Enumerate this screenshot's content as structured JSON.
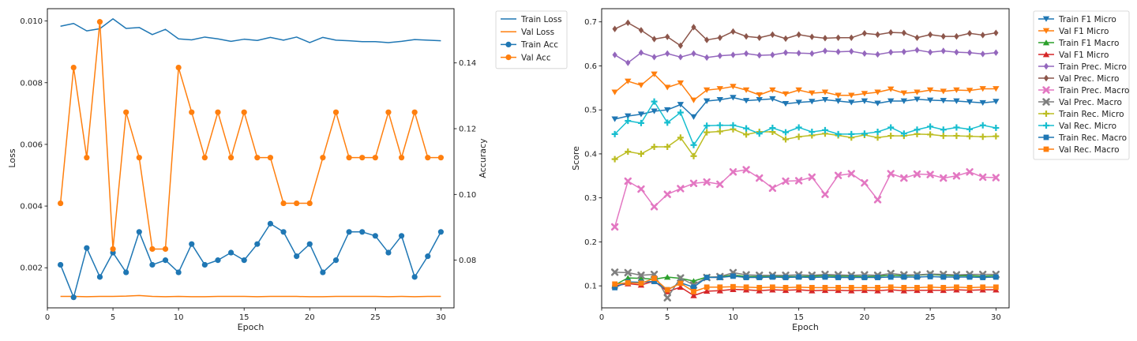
{
  "chart_data": [
    {
      "type": "line",
      "xlabel": "Epoch",
      "ylabel": "Loss",
      "y2label": "Accuracy",
      "xlim": [
        0,
        31
      ],
      "ylim": [
        0.0007,
        0.0104
      ],
      "y2lim": [
        0.0655,
        0.1565
      ],
      "x_ticks": [
        0,
        5,
        10,
        15,
        20,
        25,
        30
      ],
      "y_ticks": [
        0.002,
        0.004,
        0.006,
        0.008,
        0.01
      ],
      "y2_ticks": [
        0.08,
        0.1,
        0.12,
        0.14
      ],
      "grid": false,
      "legend": "upper-right-outside",
      "x": [
        1,
        2,
        3,
        4,
        5,
        6,
        7,
        8,
        9,
        10,
        11,
        12,
        13,
        14,
        15,
        16,
        17,
        18,
        19,
        20,
        21,
        22,
        23,
        24,
        25,
        26,
        27,
        28,
        29,
        30
      ],
      "series": [
        {
          "name": "Train Loss",
          "axis": "left",
          "color": "#1f77b4",
          "marker": "none",
          "values": [
            0.00983,
            0.00992,
            0.00968,
            0.00975,
            0.01007,
            0.00976,
            0.00979,
            0.00956,
            0.00973,
            0.00942,
            0.00939,
            0.00948,
            0.00942,
            0.00934,
            0.00941,
            0.00937,
            0.00947,
            0.00938,
            0.00948,
            0.0093,
            0.00947,
            0.00938,
            0.00936,
            0.00933,
            0.00933,
            0.0093,
            0.00934,
            0.0094,
            0.00938,
            0.00936
          ]
        },
        {
          "name": "Val Loss",
          "axis": "left",
          "color": "#ff7f0e",
          "marker": "none",
          "values": [
            0.00107,
            0.00107,
            0.00106,
            0.00107,
            0.00107,
            0.00108,
            0.0011,
            0.00107,
            0.00106,
            0.00107,
            0.00106,
            0.00106,
            0.00107,
            0.00107,
            0.00107,
            0.00106,
            0.00107,
            0.00107,
            0.00107,
            0.00106,
            0.00106,
            0.00107,
            0.00107,
            0.00107,
            0.00107,
            0.00106,
            0.00107,
            0.00106,
            0.00107,
            0.00107
          ]
        },
        {
          "name": "Train Acc",
          "axis": "right",
          "color": "#1f77b4",
          "marker": "circle",
          "values": [
            0.0786,
            0.0687,
            0.0837,
            0.0749,
            0.0823,
            0.0763,
            0.0886,
            0.0786,
            0.08,
            0.0763,
            0.0849,
            0.0786,
            0.08,
            0.0823,
            0.08,
            0.0849,
            0.0911,
            0.0886,
            0.0812,
            0.0849,
            0.0763,
            0.08,
            0.0886,
            0.0886,
            0.0874,
            0.0823,
            0.0874,
            0.0749,
            0.0812,
            0.0886
          ]
        },
        {
          "name": "Val Acc",
          "axis": "right",
          "color": "#ff7f0e",
          "marker": "circle",
          "values": [
            0.0973,
            0.1386,
            0.1112,
            0.1525,
            0.0834,
            0.125,
            0.1112,
            0.0834,
            0.0834,
            0.1386,
            0.125,
            0.1112,
            0.125,
            0.1112,
            0.125,
            0.1112,
            0.1112,
            0.0973,
            0.0973,
            0.0973,
            0.1112,
            0.125,
            0.1112,
            0.1112,
            0.1112,
            0.125,
            0.1112,
            0.125,
            0.1112,
            0.1112
          ]
        }
      ]
    },
    {
      "type": "line",
      "xlabel": "Epoch",
      "ylabel": "Score",
      "xlim": [
        0,
        31
      ],
      "ylim": [
        0.05,
        0.73
      ],
      "x_ticks": [
        0,
        5,
        10,
        15,
        20,
        25,
        30
      ],
      "y_ticks": [
        0.1,
        0.2,
        0.3,
        0.4,
        0.5,
        0.6,
        0.7
      ],
      "grid": false,
      "legend": "upper-right-outside",
      "x": [
        1,
        2,
        3,
        4,
        5,
        6,
        7,
        8,
        9,
        10,
        11,
        12,
        13,
        14,
        15,
        16,
        17,
        18,
        19,
        20,
        21,
        22,
        23,
        24,
        25,
        26,
        27,
        28,
        29,
        30
      ],
      "series": [
        {
          "name": "Train F1 Micro",
          "color": "#1f77b4",
          "marker": "tri-down",
          "values": [
            0.479,
            0.486,
            0.49,
            0.497,
            0.5,
            0.512,
            0.484,
            0.52,
            0.523,
            0.528,
            0.521,
            0.523,
            0.525,
            0.514,
            0.517,
            0.519,
            0.523,
            0.52,
            0.517,
            0.52,
            0.515,
            0.52,
            0.52,
            0.524,
            0.522,
            0.521,
            0.52,
            0.518,
            0.516,
            0.519
          ]
        },
        {
          "name": "Val F1 Micro",
          "color": "#ff7f0e",
          "marker": "tri-down",
          "values": [
            0.54,
            0.565,
            0.556,
            0.581,
            0.551,
            0.561,
            0.522,
            0.545,
            0.548,
            0.553,
            0.545,
            0.534,
            0.545,
            0.536,
            0.545,
            0.538,
            0.54,
            0.533,
            0.533,
            0.537,
            0.54,
            0.547,
            0.538,
            0.54,
            0.545,
            0.542,
            0.545,
            0.544,
            0.548,
            0.548
          ]
        },
        {
          "name": "Train F1 Macro",
          "color": "#2ca02c",
          "marker": "tri-up",
          "values": [
            0.102,
            0.118,
            0.117,
            0.115,
            0.12,
            0.117,
            0.111,
            0.12,
            0.12,
            0.125,
            0.121,
            0.121,
            0.121,
            0.121,
            0.121,
            0.122,
            0.123,
            0.122,
            0.122,
            0.121,
            0.122,
            0.124,
            0.123,
            0.124,
            0.126,
            0.124,
            0.123,
            0.123,
            0.122,
            0.123
          ]
        },
        {
          "name": "Val F1 Micro",
          "color": "#d62728",
          "marker": "tri-up",
          "values": [
            0.1,
            0.105,
            0.102,
            0.111,
            0.087,
            0.097,
            0.078,
            0.088,
            0.089,
            0.092,
            0.091,
            0.089,
            0.091,
            0.09,
            0.091,
            0.089,
            0.09,
            0.09,
            0.089,
            0.09,
            0.089,
            0.091,
            0.089,
            0.09,
            0.09,
            0.09,
            0.091,
            0.09,
            0.091,
            0.091
          ]
        },
        {
          "name": "Train Prec. Micro",
          "color": "#9467bd",
          "marker": "diamond",
          "values": [
            0.625,
            0.607,
            0.63,
            0.62,
            0.628,
            0.62,
            0.628,
            0.619,
            0.623,
            0.625,
            0.628,
            0.624,
            0.625,
            0.63,
            0.629,
            0.628,
            0.634,
            0.632,
            0.633,
            0.628,
            0.626,
            0.631,
            0.632,
            0.636,
            0.631,
            0.634,
            0.631,
            0.63,
            0.627,
            0.63
          ]
        },
        {
          "name": "Val Prec. Micro",
          "color": "#8c564b",
          "marker": "diamond",
          "values": [
            0.684,
            0.698,
            0.681,
            0.661,
            0.666,
            0.646,
            0.688,
            0.659,
            0.664,
            0.678,
            0.667,
            0.664,
            0.671,
            0.662,
            0.671,
            0.666,
            0.663,
            0.664,
            0.664,
            0.674,
            0.671,
            0.676,
            0.675,
            0.664,
            0.671,
            0.667,
            0.667,
            0.674,
            0.67,
            0.675
          ]
        },
        {
          "name": "Train Prec. Macro",
          "color": "#e377c2",
          "marker": "x",
          "values": [
            0.234,
            0.338,
            0.32,
            0.28,
            0.308,
            0.321,
            0.333,
            0.336,
            0.331,
            0.359,
            0.364,
            0.345,
            0.322,
            0.338,
            0.339,
            0.347,
            0.308,
            0.351,
            0.355,
            0.334,
            0.296,
            0.355,
            0.345,
            0.354,
            0.353,
            0.345,
            0.35,
            0.359,
            0.347,
            0.346
          ]
        },
        {
          "name": "Val Prec. Macro",
          "color": "#7f7f7f",
          "marker": "x",
          "values": [
            0.131,
            0.13,
            0.124,
            0.126,
            0.073,
            0.118,
            0.102,
            0.119,
            0.121,
            0.13,
            0.125,
            0.124,
            0.124,
            0.124,
            0.125,
            0.124,
            0.126,
            0.125,
            0.124,
            0.125,
            0.124,
            0.128,
            0.125,
            0.125,
            0.127,
            0.126,
            0.125,
            0.126,
            0.126,
            0.126
          ]
        },
        {
          "name": "Train Rec. Micro",
          "color": "#bcbd22",
          "marker": "plus",
          "values": [
            0.388,
            0.405,
            0.4,
            0.416,
            0.416,
            0.437,
            0.395,
            0.449,
            0.451,
            0.456,
            0.444,
            0.45,
            0.45,
            0.433,
            0.439,
            0.442,
            0.446,
            0.442,
            0.437,
            0.443,
            0.437,
            0.441,
            0.441,
            0.445,
            0.444,
            0.441,
            0.441,
            0.44,
            0.439,
            0.44
          ]
        },
        {
          "name": "Val Rec. Micro",
          "color": "#17becf",
          "marker": "plus",
          "values": [
            0.445,
            0.475,
            0.47,
            0.519,
            0.471,
            0.494,
            0.42,
            0.464,
            0.465,
            0.465,
            0.458,
            0.446,
            0.459,
            0.449,
            0.46,
            0.45,
            0.454,
            0.445,
            0.445,
            0.446,
            0.45,
            0.46,
            0.446,
            0.455,
            0.462,
            0.455,
            0.46,
            0.456,
            0.465,
            0.459
          ]
        },
        {
          "name": "Train Rec. Macro",
          "color": "#1f77b4",
          "marker": "square",
          "values": [
            0.096,
            0.109,
            0.108,
            0.11,
            0.091,
            0.107,
            0.097,
            0.119,
            0.119,
            0.122,
            0.119,
            0.119,
            0.12,
            0.119,
            0.12,
            0.119,
            0.12,
            0.119,
            0.119,
            0.119,
            0.119,
            0.12,
            0.12,
            0.12,
            0.121,
            0.12,
            0.12,
            0.12,
            0.119,
            0.12
          ]
        },
        {
          "name": "Val Rec. Macro",
          "color": "#ff7f0e",
          "marker": "square",
          "values": [
            0.104,
            0.107,
            0.106,
            0.117,
            0.091,
            0.106,
            0.087,
            0.097,
            0.097,
            0.098,
            0.097,
            0.096,
            0.097,
            0.096,
            0.097,
            0.096,
            0.096,
            0.096,
            0.096,
            0.096,
            0.096,
            0.097,
            0.096,
            0.096,
            0.097,
            0.096,
            0.097,
            0.096,
            0.097,
            0.097
          ]
        }
      ]
    }
  ]
}
